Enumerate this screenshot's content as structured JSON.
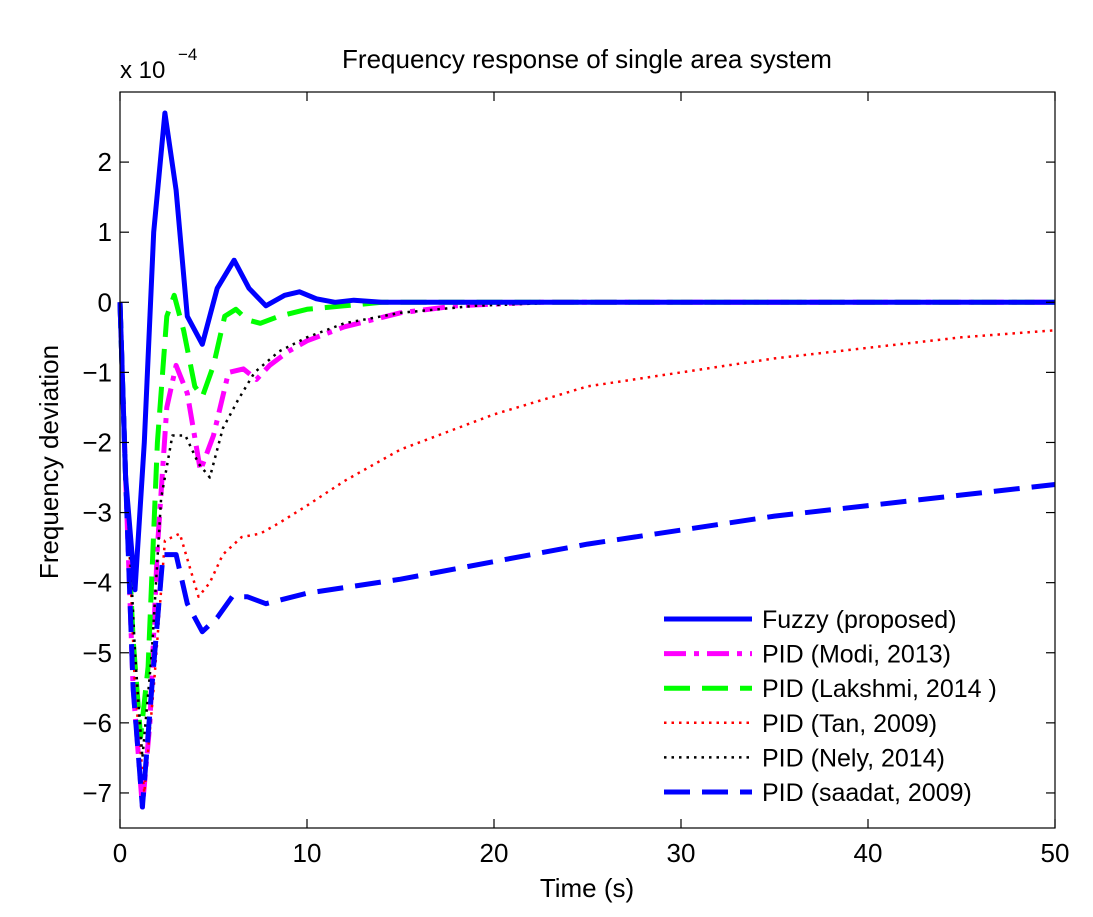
{
  "chart_data": {
    "type": "line",
    "title": "Frequency response of single area system",
    "xlabel": "Time (s)",
    "ylabel": "Frequency deviation",
    "y_multiplier": {
      "base": "x 10",
      "exponent": "−4"
    },
    "xlim": [
      0,
      50
    ],
    "ylim": [
      -7.5,
      3
    ],
    "x_ticks": [
      0,
      10,
      20,
      30,
      40,
      50
    ],
    "y_ticks": [
      -7,
      -6,
      -5,
      -4,
      -3,
      -2,
      -1,
      0,
      1,
      2
    ],
    "grid": false,
    "legend_position": "bottom-right",
    "series": [
      {
        "name": "Fuzzy (proposed)",
        "color": "#0000ff",
        "style": "solid",
        "points": [
          [
            0,
            0
          ],
          [
            0.3,
            -2.5
          ],
          [
            0.8,
            -4.1
          ],
          [
            1.3,
            -2.0
          ],
          [
            1.8,
            1.0
          ],
          [
            2.4,
            2.7
          ],
          [
            3.0,
            1.6
          ],
          [
            3.6,
            -0.2
          ],
          [
            4.4,
            -0.6
          ],
          [
            5.2,
            0.2
          ],
          [
            6.1,
            0.6
          ],
          [
            6.9,
            0.2
          ],
          [
            7.8,
            -0.05
          ],
          [
            8.8,
            0.1
          ],
          [
            9.6,
            0.15
          ],
          [
            10.5,
            0.05
          ],
          [
            11.5,
            0.0
          ],
          [
            12.5,
            0.03
          ],
          [
            14,
            0.0
          ],
          [
            50,
            0.0
          ]
        ]
      },
      {
        "name": "PID (Modi, 2013)",
        "color": "#ff00ff",
        "style": "dashdot",
        "points": [
          [
            0,
            0
          ],
          [
            0.3,
            -2.5
          ],
          [
            0.7,
            -5.5
          ],
          [
            1.2,
            -7.2
          ],
          [
            1.6,
            -6.0
          ],
          [
            2.0,
            -3.5
          ],
          [
            2.5,
            -1.5
          ],
          [
            3.0,
            -0.9
          ],
          [
            3.6,
            -1.3
          ],
          [
            4.3,
            -2.4
          ],
          [
            5.0,
            -1.9
          ],
          [
            5.8,
            -1.0
          ],
          [
            6.6,
            -0.95
          ],
          [
            7.3,
            -1.1
          ],
          [
            8.0,
            -0.9
          ],
          [
            9,
            -0.7
          ],
          [
            10,
            -0.55
          ],
          [
            12,
            -0.35
          ],
          [
            15,
            -0.15
          ],
          [
            18,
            -0.05
          ],
          [
            22,
            0
          ],
          [
            50,
            0
          ]
        ]
      },
      {
        "name": "PID (Lakshmi, 2014 )",
        "color": "#00ff00",
        "style": "dashed",
        "points": [
          [
            0,
            0
          ],
          [
            0.3,
            -2.5
          ],
          [
            0.7,
            -4.8
          ],
          [
            1.1,
            -6.2
          ],
          [
            1.5,
            -5.2
          ],
          [
            2.0,
            -2.0
          ],
          [
            2.5,
            -0.2
          ],
          [
            2.9,
            0.1
          ],
          [
            3.4,
            -0.4
          ],
          [
            4.0,
            -1.2
          ],
          [
            4.4,
            -1.35
          ],
          [
            5.0,
            -0.9
          ],
          [
            5.6,
            -0.2
          ],
          [
            6.2,
            -0.1
          ],
          [
            6.8,
            -0.25
          ],
          [
            7.5,
            -0.3
          ],
          [
            8.5,
            -0.2
          ],
          [
            10,
            -0.1
          ],
          [
            12,
            -0.05
          ],
          [
            14,
            0
          ],
          [
            50,
            0
          ]
        ]
      },
      {
        "name": "PID (Tan, 2009)",
        "color": "#ff0000",
        "style": "dotted",
        "points": [
          [
            0,
            0
          ],
          [
            0.3,
            -2.2
          ],
          [
            0.8,
            -5.5
          ],
          [
            1.3,
            -7.0
          ],
          [
            1.8,
            -5.5
          ],
          [
            2.4,
            -3.4
          ],
          [
            3.2,
            -3.3
          ],
          [
            4.2,
            -4.2
          ],
          [
            4.8,
            -4.0
          ],
          [
            5.5,
            -3.6
          ],
          [
            6.5,
            -3.35
          ],
          [
            7.5,
            -3.3
          ],
          [
            8.5,
            -3.15
          ],
          [
            10,
            -2.9
          ],
          [
            12,
            -2.55
          ],
          [
            15,
            -2.1
          ],
          [
            20,
            -1.6
          ],
          [
            25,
            -1.2
          ],
          [
            30,
            -1.0
          ],
          [
            35,
            -0.8
          ],
          [
            40,
            -0.65
          ],
          [
            45,
            -0.5
          ],
          [
            50,
            -0.4
          ]
        ]
      },
      {
        "name": "PID (Nely, 2014)",
        "color": "#000000",
        "style": "dotted",
        "points": [
          [
            0,
            0
          ],
          [
            0.3,
            -2.2
          ],
          [
            0.8,
            -5.0
          ],
          [
            1.2,
            -6.5
          ],
          [
            1.7,
            -5.0
          ],
          [
            2.2,
            -2.8
          ],
          [
            2.8,
            -1.9
          ],
          [
            3.5,
            -1.9
          ],
          [
            4.2,
            -2.3
          ],
          [
            4.8,
            -2.5
          ],
          [
            5.5,
            -1.8
          ],
          [
            6.3,
            -1.4
          ],
          [
            7.2,
            -1.0
          ],
          [
            8.5,
            -0.7
          ],
          [
            10,
            -0.5
          ],
          [
            12,
            -0.3
          ],
          [
            15,
            -0.15
          ],
          [
            19,
            -0.05
          ],
          [
            24,
            0
          ],
          [
            50,
            0
          ]
        ]
      },
      {
        "name": "PID (saadat, 2009)",
        "color": "#0000ff",
        "style": "dashed",
        "points": [
          [
            0,
            0
          ],
          [
            0.3,
            -2.5
          ],
          [
            0.7,
            -5.5
          ],
          [
            1.2,
            -7.2
          ],
          [
            1.7,
            -5.5
          ],
          [
            2.3,
            -3.6
          ],
          [
            3.0,
            -3.6
          ],
          [
            3.6,
            -4.3
          ],
          [
            4.4,
            -4.7
          ],
          [
            5.2,
            -4.5
          ],
          [
            6.0,
            -4.2
          ],
          [
            6.8,
            -4.2
          ],
          [
            7.8,
            -4.3
          ],
          [
            10,
            -4.15
          ],
          [
            15,
            -3.95
          ],
          [
            20,
            -3.7
          ],
          [
            25,
            -3.45
          ],
          [
            30,
            -3.25
          ],
          [
            35,
            -3.05
          ],
          [
            40,
            -2.9
          ],
          [
            45,
            -2.75
          ],
          [
            50,
            -2.6
          ]
        ]
      }
    ]
  }
}
